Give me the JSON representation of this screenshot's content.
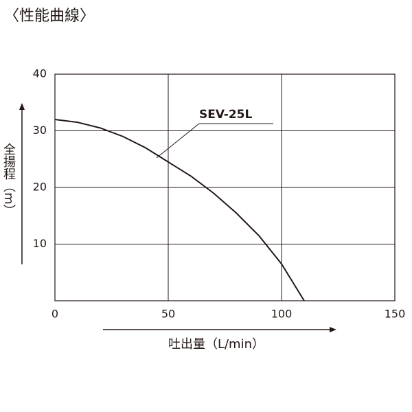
{
  "chart_data": {
    "type": "line",
    "title": "〈性能曲線〉",
    "x_label": "吐出量（L/min）",
    "y_label": "全揚程（m）",
    "x": [
      0,
      10,
      20,
      30,
      40,
      50,
      60,
      70,
      80,
      90,
      100,
      110
    ],
    "series": [
      {
        "name": "SEV-25L",
        "color": "#231815",
        "values": [
          32,
          31.5,
          30.5,
          29,
          27,
          24.5,
          22,
          19,
          15.5,
          11.5,
          6.5,
          0
        ]
      }
    ],
    "xlim": [
      0,
      150
    ],
    "xticks": [
      0,
      50,
      100,
      150
    ],
    "ylim": [
      0,
      40
    ],
    "yticks": [
      10,
      20,
      30,
      40
    ],
    "grid": true
  }
}
